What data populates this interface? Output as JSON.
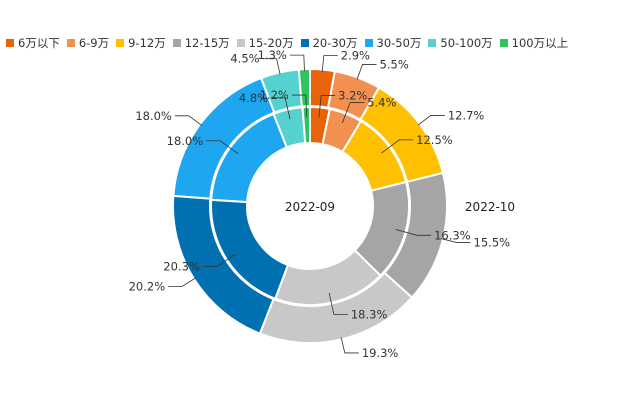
{
  "chart_data": {
    "type": "pie",
    "style": "nested-donut",
    "categories": [
      "6万以下",
      "6-9万",
      "9-12万",
      "12-15万",
      "15-20万",
      "20-30万",
      "30-50万",
      "50-100万",
      "100万以上"
    ],
    "colors": [
      "#e8630a",
      "#f29050",
      "#ffc000",
      "#a5a5a5",
      "#c8c8c8",
      "#0070b0",
      "#1ea6f0",
      "#55d2cf",
      "#2ec55e"
    ],
    "series": [
      {
        "name": "2022-09",
        "ring": "inner",
        "values": [
          3.2,
          5.4,
          12.5,
          16.3,
          18.3,
          20.3,
          18.0,
          4.8,
          1.2
        ],
        "labels": [
          "3.2%",
          "5.4%",
          "12.5%",
          "16.3%",
          "18.3%",
          "20.3%",
          "18.0%",
          "4.8%",
          "1.2%"
        ]
      },
      {
        "name": "2022-10",
        "ring": "outer",
        "values": [
          2.9,
          5.5,
          12.7,
          15.5,
          19.3,
          20.2,
          18.0,
          4.5,
          1.3
        ],
        "labels": [
          "2.9%",
          "5.5%",
          "12.7%",
          "15.5%",
          "19.3%",
          "20.2%",
          "18.0%",
          "4.5%",
          "1.3%"
        ]
      }
    ],
    "legend_position": "top-left"
  }
}
